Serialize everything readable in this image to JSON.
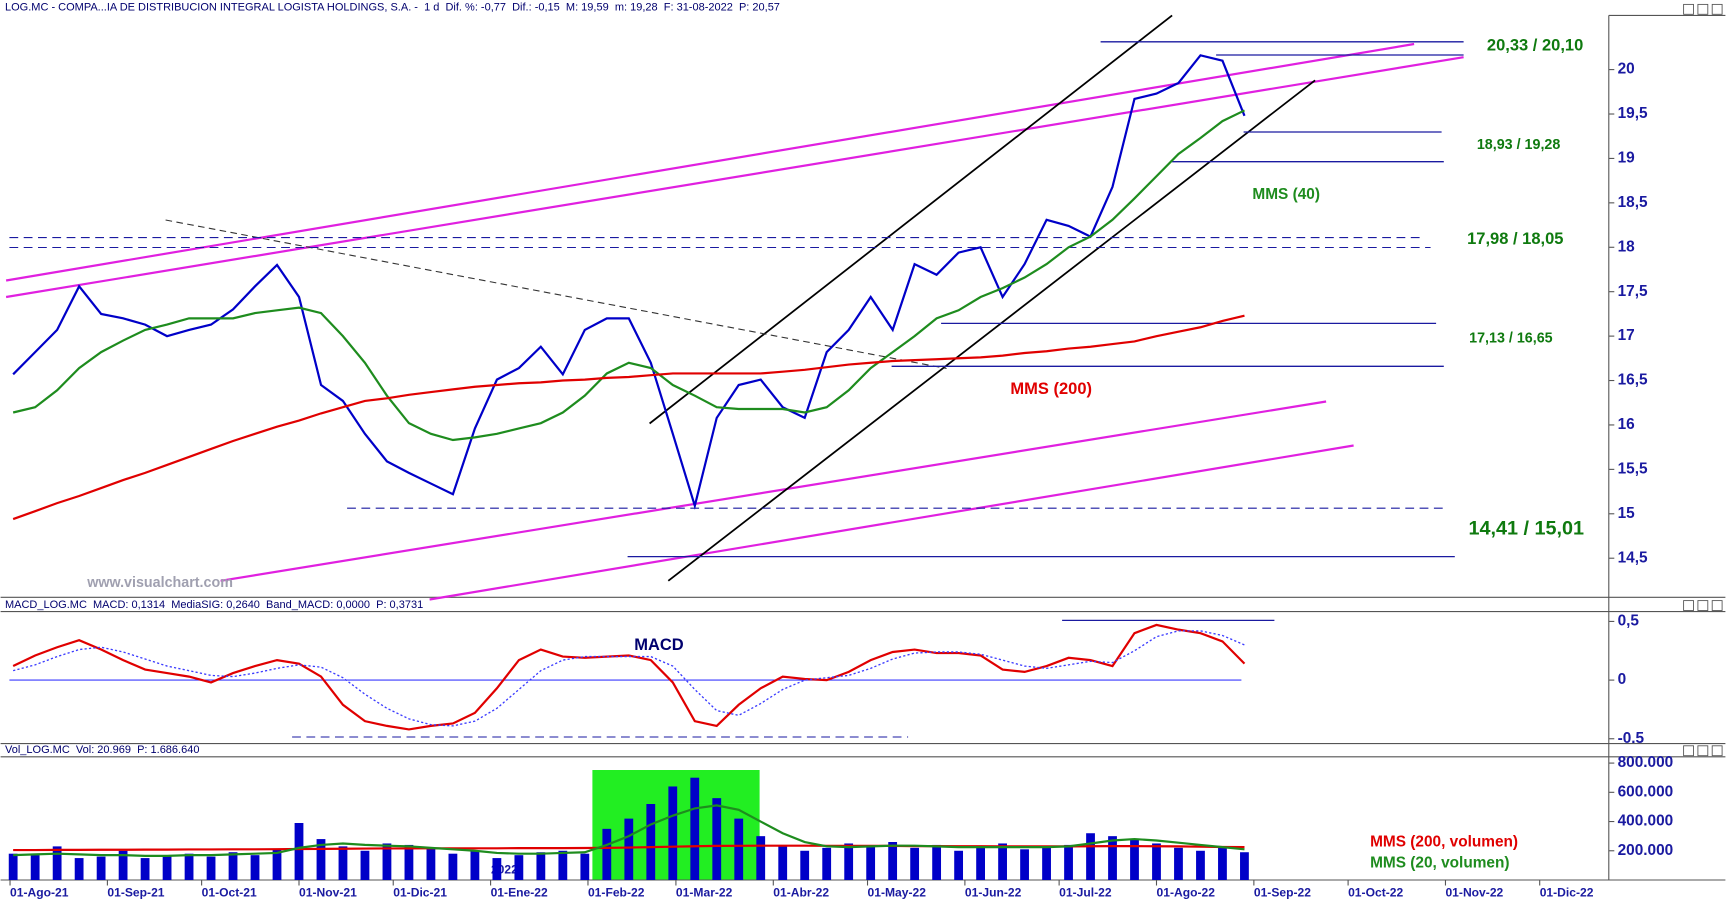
{
  "chart_data": [
    {
      "type": "line",
      "title": "LOG.MC - COMPA...IA DE DISTRIBUCION INTEGRAL LOGISTA HOLDINGS, S.A. -  1 d  Dif. %: -0,77  Dif.: -0,15  M: 19,59  m: 19,28  F: 31-08-2022  P: 20,57",
      "annotations": [
        "20,33 / 20,10",
        "18,93 / 19,28",
        "17,98 / 18,05",
        "17,13 / 16,65",
        "14,41 / 15,01",
        "www.visualchart.com"
      ],
      "x": [
        "2021-08-02",
        "2021-08-09",
        "2021-08-16",
        "2021-08-23",
        "2021-08-30",
        "2021-09-06",
        "2021-09-13",
        "2021-09-20",
        "2021-09-27",
        "2021-10-04",
        "2021-10-11",
        "2021-10-18",
        "2021-10-25",
        "2021-11-01",
        "2021-11-08",
        "2021-11-15",
        "2021-11-22",
        "2021-11-29",
        "2021-12-06",
        "2021-12-13",
        "2021-12-20",
        "2021-12-27",
        "2022-01-03",
        "2022-01-10",
        "2022-01-17",
        "2022-01-24",
        "2022-01-31",
        "2022-02-07",
        "2022-02-14",
        "2022-02-21",
        "2022-02-28",
        "2022-03-07",
        "2022-03-14",
        "2022-03-21",
        "2022-03-28",
        "2022-04-04",
        "2022-04-11",
        "2022-04-18",
        "2022-04-25",
        "2022-05-02",
        "2022-05-09",
        "2022-05-16",
        "2022-05-23",
        "2022-05-30",
        "2022-06-06",
        "2022-06-13",
        "2022-06-20",
        "2022-06-27",
        "2022-07-04",
        "2022-07-11",
        "2022-07-18",
        "2022-07-25",
        "2022-08-01",
        "2022-08-08",
        "2022-08-15",
        "2022-08-22",
        "2022-08-29"
      ],
      "series": [
        {
          "color": "#0000c8",
          "values": [
            16.57,
            16.82,
            17.07,
            17.56,
            17.25,
            17.2,
            17.13,
            17.0,
            17.07,
            17.13,
            17.3,
            17.56,
            17.8,
            17.44,
            16.45,
            16.27,
            15.9,
            15.59,
            15.46,
            15.34,
            15.22,
            15.96,
            16.51,
            16.64,
            16.88,
            16.57,
            17.07,
            17.2,
            17.2,
            16.7,
            15.9,
            15.09,
            16.08,
            16.45,
            16.51,
            16.2,
            16.08,
            16.82,
            17.07,
            17.44,
            17.07,
            17.81,
            17.69,
            17.94,
            18.0,
            17.44,
            17.81,
            18.31,
            18.24,
            18.12,
            18.68,
            19.67,
            19.73,
            19.85,
            20.16,
            20.1,
            19.48
          ]
        },
        {
          "name": "MMS (40)",
          "color": "#1e8c1e",
          "values": [
            16.14,
            16.2,
            16.39,
            16.64,
            16.82,
            16.95,
            17.07,
            17.13,
            17.2,
            17.2,
            17.2,
            17.26,
            17.29,
            17.32,
            17.26,
            17.0,
            16.7,
            16.33,
            16.02,
            15.9,
            15.83,
            15.86,
            15.9,
            15.96,
            16.02,
            16.14,
            16.33,
            16.58,
            16.7,
            16.64,
            16.45,
            16.33,
            16.2,
            16.18,
            16.18,
            16.18,
            16.14,
            16.2,
            16.39,
            16.64,
            16.82,
            17.0,
            17.2,
            17.29,
            17.44,
            17.54,
            17.66,
            17.81,
            18.0,
            18.12,
            18.31,
            18.55,
            18.8,
            19.05,
            19.23,
            19.42,
            19.54
          ]
        },
        {
          "name": "MMS (200)",
          "color": "#e00000",
          "values": [
            14.94,
            15.03,
            15.12,
            15.2,
            15.29,
            15.38,
            15.46,
            15.55,
            15.64,
            15.73,
            15.82,
            15.9,
            15.98,
            16.05,
            16.13,
            16.2,
            16.27,
            16.3,
            16.34,
            16.37,
            16.4,
            16.43,
            16.45,
            16.47,
            16.48,
            16.5,
            16.51,
            16.53,
            16.54,
            16.56,
            16.58,
            16.58,
            16.58,
            16.58,
            16.58,
            16.6,
            16.62,
            16.65,
            16.68,
            16.7,
            16.72,
            16.73,
            16.74,
            16.75,
            16.76,
            16.78,
            16.81,
            16.83,
            16.86,
            16.88,
            16.91,
            16.94,
            17.0,
            17.05,
            17.1,
            17.17,
            17.23
          ]
        }
      ],
      "xlim": [
        "2021-07-29",
        "2022-12-23"
      ],
      "ylim": [
        14.06,
        20.61
      ],
      "yticks": [
        {
          "value": 14.5,
          "label": "14,5"
        },
        15,
        {
          "value": 15.5,
          "label": "15,5"
        },
        16,
        {
          "value": 16.5,
          "label": "16,5"
        },
        17,
        {
          "value": 17.5,
          "label": "17,5"
        },
        18,
        {
          "value": 18.5,
          "label": "18,5"
        },
        19,
        {
          "value": 19.5,
          "label": "19,5"
        },
        20
      ]
    },
    {
      "type": "line",
      "title": "MACD_LOG.MC  MACD: 0,1314  MediaSIG: 0,2640  Band_MACD: 0,0000  P: 0,3731",
      "x": [
        "2021-08-02",
        "2021-08-09",
        "2021-08-16",
        "2021-08-23",
        "2021-08-30",
        "2021-09-06",
        "2021-09-13",
        "2021-09-20",
        "2021-09-27",
        "2021-10-04",
        "2021-10-11",
        "2021-10-18",
        "2021-10-25",
        "2021-11-01",
        "2021-11-08",
        "2021-11-15",
        "2021-11-22",
        "2021-11-29",
        "2021-12-06",
        "2021-12-13",
        "2021-12-20",
        "2021-12-27",
        "2022-01-03",
        "2022-01-10",
        "2022-01-17",
        "2022-01-24",
        "2022-01-31",
        "2022-02-07",
        "2022-02-14",
        "2022-02-21",
        "2022-02-28",
        "2022-03-07",
        "2022-03-14",
        "2022-03-21",
        "2022-03-28",
        "2022-04-04",
        "2022-04-11",
        "2022-04-18",
        "2022-04-25",
        "2022-05-02",
        "2022-05-09",
        "2022-05-16",
        "2022-05-23",
        "2022-05-30",
        "2022-06-06",
        "2022-06-13",
        "2022-06-20",
        "2022-06-27",
        "2022-07-04",
        "2022-07-11",
        "2022-07-18",
        "2022-07-25",
        "2022-08-01",
        "2022-08-08",
        "2022-08-15",
        "2022-08-22",
        "2022-08-29"
      ],
      "series": [
        {
          "name": "MACD",
          "color": "#e00000",
          "values": [
            0.12,
            0.21,
            0.28,
            0.34,
            0.26,
            0.17,
            0.09,
            0.06,
            0.03,
            -0.02,
            0.06,
            0.12,
            0.17,
            0.14,
            0.03,
            -0.21,
            -0.35,
            -0.39,
            -0.42,
            -0.39,
            -0.37,
            -0.28,
            -0.07,
            0.17,
            0.26,
            0.2,
            0.19,
            0.2,
            0.21,
            0.17,
            -0.02,
            -0.35,
            -0.39,
            -0.21,
            -0.07,
            0.03,
            0.01,
            0.0,
            0.07,
            0.17,
            0.24,
            0.26,
            0.23,
            0.23,
            0.21,
            0.09,
            0.07,
            0.12,
            0.19,
            0.17,
            0.12,
            0.4,
            0.47,
            0.43,
            0.4,
            0.33,
            0.14
          ]
        },
        {
          "color": "#3a3aff",
          "dash": true,
          "values": [
            0.08,
            0.13,
            0.2,
            0.26,
            0.28,
            0.24,
            0.18,
            0.12,
            0.08,
            0.04,
            0.03,
            0.06,
            0.1,
            0.13,
            0.11,
            0.02,
            -0.12,
            -0.24,
            -0.33,
            -0.38,
            -0.39,
            -0.35,
            -0.24,
            -0.08,
            0.08,
            0.17,
            0.2,
            0.2,
            0.2,
            0.2,
            0.12,
            -0.08,
            -0.26,
            -0.3,
            -0.2,
            -0.08,
            0.0,
            0.02,
            0.04,
            0.1,
            0.18,
            0.23,
            0.24,
            0.24,
            0.22,
            0.17,
            0.12,
            0.1,
            0.13,
            0.16,
            0.15,
            0.25,
            0.37,
            0.42,
            0.42,
            0.38,
            0.3
          ]
        }
      ],
      "xlim": [
        "2021-07-29",
        "2022-12-23"
      ],
      "ylim": [
        -0.56,
        0.565
      ],
      "yticks": [
        {
          "value": 0.5,
          "label": "0,5"
        },
        0,
        {
          "value": -0.5,
          "label": "-0.5"
        }
      ]
    },
    {
      "type": "bar",
      "title": "Vol_LOG.MC  Vol: 20.969  P: 1.686.640",
      "annotations": [
        "2022"
      ],
      "x": [
        "2021-08-02",
        "2021-08-09",
        "2021-08-16",
        "2021-08-23",
        "2021-08-30",
        "2021-09-06",
        "2021-09-13",
        "2021-09-20",
        "2021-09-27",
        "2021-10-04",
        "2021-10-11",
        "2021-10-18",
        "2021-10-25",
        "2021-11-01",
        "2021-11-08",
        "2021-11-15",
        "2021-11-22",
        "2021-11-29",
        "2021-12-06",
        "2021-12-13",
        "2021-12-20",
        "2021-12-27",
        "2022-01-03",
        "2022-01-10",
        "2022-01-17",
        "2022-01-24",
        "2022-01-31",
        "2022-02-07",
        "2022-02-14",
        "2022-02-21",
        "2022-02-28",
        "2022-03-07",
        "2022-03-14",
        "2022-03-21",
        "2022-03-28",
        "2022-04-04",
        "2022-04-11",
        "2022-04-18",
        "2022-04-25",
        "2022-05-02",
        "2022-05-09",
        "2022-05-16",
        "2022-05-23",
        "2022-05-30",
        "2022-06-06",
        "2022-06-13",
        "2022-06-20",
        "2022-06-27",
        "2022-07-04",
        "2022-07-11",
        "2022-07-18",
        "2022-07-25",
        "2022-08-01",
        "2022-08-08",
        "2022-08-15",
        "2022-08-22",
        "2022-08-29"
      ],
      "series": [
        {
          "type": "bar",
          "color": "#0000c8",
          "values": [
            180000,
            170000,
            230000,
            150000,
            160000,
            200000,
            150000,
            170000,
            180000,
            160000,
            190000,
            170000,
            210000,
            390000,
            280000,
            230000,
            200000,
            250000,
            240000,
            220000,
            180000,
            200000,
            150000,
            170000,
            190000,
            200000,
            180000,
            350000,
            420000,
            520000,
            640000,
            700000,
            560000,
            420000,
            300000,
            230000,
            200000,
            220000,
            250000,
            230000,
            260000,
            220000,
            240000,
            200000,
            220000,
            250000,
            210000,
            230000,
            240000,
            320000,
            300000,
            280000,
            250000,
            220000,
            200000,
            230000,
            190000
          ]
        },
        {
          "type": "line",
          "name": "MMS (200, volumen)",
          "color": "#e00000",
          "values": [
            205000,
            205000,
            206000,
            206000,
            207000,
            207000,
            208000,
            208000,
            209000,
            209000,
            210000,
            210000,
            211000,
            212000,
            213000,
            214000,
            215000,
            216000,
            216000,
            217000,
            217000,
            217000,
            217000,
            218000,
            218000,
            218000,
            219000,
            220000,
            222000,
            225000,
            228000,
            231000,
            233000,
            234000,
            235000,
            235000,
            235000,
            234000,
            234000,
            233000,
            233000,
            232000,
            232000,
            231000,
            231000,
            230000,
            230000,
            230000,
            230000,
            231000,
            232000,
            232000,
            231000,
            230000,
            228000,
            226000,
            225000
          ]
        },
        {
          "type": "line",
          "name": "MMS (20, volumen)",
          "color": "#1e8c1e",
          "values": [
            170000,
            175000,
            180000,
            175000,
            170000,
            170000,
            165000,
            165000,
            170000,
            170000,
            175000,
            180000,
            185000,
            220000,
            240000,
            250000,
            240000,
            235000,
            230000,
            220000,
            210000,
            200000,
            185000,
            180000,
            180000,
            185000,
            190000,
            240000,
            300000,
            380000,
            440000,
            490000,
            510000,
            480000,
            400000,
            320000,
            260000,
            230000,
            225000,
            230000,
            235000,
            235000,
            230000,
            225000,
            225000,
            225000,
            225000,
            225000,
            230000,
            250000,
            270000,
            280000,
            270000,
            255000,
            240000,
            225000,
            210000
          ]
        }
      ],
      "xlim": [
        "2021-07-29",
        "2022-12-23"
      ],
      "ylim": [
        0,
        843000
      ],
      "yticks": [
        {
          "value": 800000,
          "label": "800.000"
        },
        {
          "value": 600000,
          "label": "600.000"
        },
        {
          "value": 400000,
          "label": "400.000"
        },
        {
          "value": 200000,
          "label": "200.000"
        }
      ],
      "xticks": [
        {
          "value": "2021-08-01",
          "label": "01-Ago-21"
        },
        {
          "value": "2021-09-01",
          "label": "01-Sep-21"
        },
        {
          "value": "2021-10-01",
          "label": "01-Oct-21"
        },
        {
          "value": "2021-11-01",
          "label": "01-Nov-21"
        },
        {
          "value": "2021-12-01",
          "label": "01-Dic-21"
        },
        {
          "value": "2022-01-01",
          "label": "01-Ene-22"
        },
        {
          "value": "2022-02-01",
          "label": "01-Feb-22"
        },
        {
          "value": "2022-03-01",
          "label": "01-Mar-22"
        },
        {
          "value": "2022-04-01",
          "label": "01-Abr-22"
        },
        {
          "value": "2022-05-01",
          "label": "01-May-22"
        },
        {
          "value": "2022-06-01",
          "label": "01-Jun-22"
        },
        {
          "value": "2022-07-01",
          "label": "01-Jul-22"
        },
        {
          "value": "2022-08-01",
          "label": "01-Ago-22"
        },
        {
          "value": "2022-09-01",
          "label": "01-Sep-22"
        },
        {
          "value": "2022-10-01",
          "label": "01-Oct-22"
        },
        {
          "value": "2022-11-01",
          "label": "01-Nov-22"
        },
        {
          "value": "2022-12-01",
          "label": "01-Dic-22"
        }
      ]
    }
  ]
}
